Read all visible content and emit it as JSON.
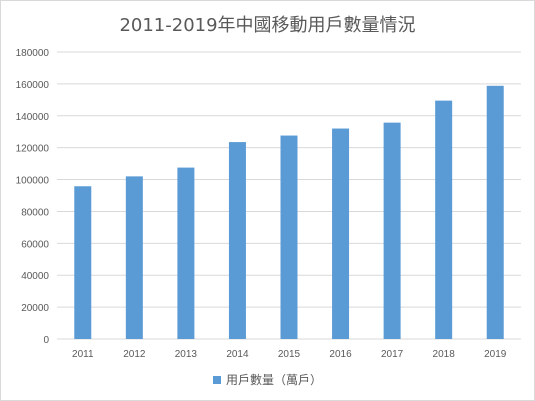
{
  "chart_data": {
    "type": "bar",
    "title": "2011-2019年中國移動用戶數量情況",
    "categories": [
      "2011",
      "2012",
      "2013",
      "2014",
      "2015",
      "2016",
      "2017",
      "2018",
      "2019"
    ],
    "series": [
      {
        "name": "用戶數量（萬戶）",
        "color": "#5b9bd5",
        "values": [
          95800,
          102000,
          107500,
          123500,
          127600,
          132000,
          135700,
          149500,
          158800
        ]
      }
    ],
    "xlabel": "",
    "ylabel": "",
    "ylim": [
      0,
      180000
    ],
    "yticks": [
      "0",
      "20000",
      "40000",
      "60000",
      "80000",
      "100000",
      "120000",
      "140000",
      "160000",
      "180000"
    ],
    "grid": true,
    "legend_position": "bottom"
  }
}
